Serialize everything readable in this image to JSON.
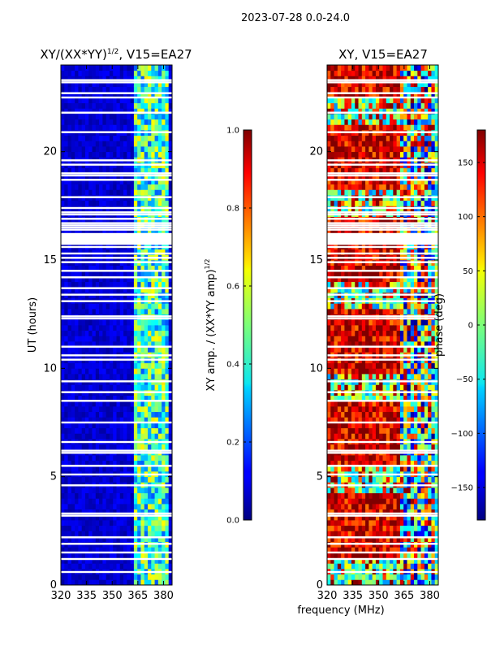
{
  "figure_title": "2023-07-28 0.0-24.0",
  "chart_data": [
    {
      "type": "heatmap",
      "title_prefix": "XY/(XX*YY)",
      "title_exp": "1/2",
      "title_suffix": ", V15=EA27",
      "xlabel": "",
      "ylabel": "UT (hours)",
      "xlim": [
        320,
        385
      ],
      "ylim": [
        0,
        24
      ],
      "xticks": [
        320,
        335,
        350,
        365,
        380
      ],
      "yticks": [
        0,
        5,
        10,
        15,
        20
      ],
      "value_range": [
        0,
        1
      ],
      "colorbar": {
        "label_prefix": "XY amp. / (XX*YY amp)",
        "label_exp": "1/2",
        "ticks": [
          0.0,
          0.2,
          0.4,
          0.6,
          0.8,
          1.0
        ],
        "tick_labels": [
          "0.0",
          "0.2",
          "0.4",
          "0.6",
          "0.8",
          "1.0"
        ],
        "range": [
          0,
          1
        ]
      },
      "colormap": "jet",
      "bands": [
        {
          "x_start": 320,
          "x_end": 362,
          "typical_value": 0.08
        },
        {
          "x_start": 362,
          "x_end": 383,
          "typical_value": 0.35
        },
        {
          "x_start": 383,
          "x_end": 385,
          "typical_value": 0.1
        }
      ],
      "flagged_hours": [
        0.6,
        1.2,
        1.5,
        1.9,
        2.2,
        3.2,
        3.3,
        4.6,
        5.1,
        5.5,
        6.1,
        6.2,
        6.6,
        7.5,
        8.5,
        8.9,
        9.4,
        10.4,
        10.6,
        11.0,
        12.3,
        12.4,
        13.1,
        13.4,
        13.7,
        14.2,
        14.5,
        14.9,
        15.1,
        15.3,
        15.6,
        16.2,
        16.4,
        16.5,
        16.6,
        16.7,
        16.9,
        17.1,
        17.2,
        17.4,
        17.9,
        18.7,
        18.9,
        19.0,
        19.4,
        19.6,
        20.9,
        21.8,
        22.5,
        22.7,
        23.2,
        23.3
      ],
      "flagged_spans": [
        [
          15.7,
          16.2
        ]
      ]
    },
    {
      "type": "heatmap",
      "title": "XY, V15=EA27",
      "xlabel": "frequency (MHz)",
      "ylabel": "",
      "xlim": [
        320,
        385
      ],
      "ylim": [
        0,
        24
      ],
      "xticks": [
        320,
        335,
        350,
        365,
        380
      ],
      "yticks": [
        0,
        5,
        10,
        15,
        20
      ],
      "value_range": [
        -180,
        180
      ],
      "colorbar": {
        "label": "phase (deg)",
        "ticks": [
          -150,
          -100,
          -50,
          0,
          50,
          100,
          150
        ],
        "tick_labels": [
          "−150",
          "−100",
          "−50",
          "0",
          "50",
          "100",
          "150"
        ],
        "range": [
          -180,
          180
        ]
      },
      "colormap": "jet",
      "bands": [
        {
          "x_start": 320,
          "x_end": 362,
          "typical_value": 150
        },
        {
          "x_start": 362,
          "x_end": 385,
          "typical_value": -20
        }
      ],
      "flagged_hours": [
        0.6,
        1.2,
        1.5,
        1.9,
        2.2,
        3.2,
        3.3,
        4.6,
        5.1,
        5.5,
        6.1,
        6.2,
        6.6,
        7.5,
        8.5,
        8.9,
        9.4,
        10.4,
        10.6,
        11.0,
        12.3,
        12.4,
        13.1,
        13.4,
        13.7,
        14.2,
        14.5,
        14.9,
        15.1,
        15.3,
        15.6,
        16.2,
        16.4,
        16.5,
        16.6,
        16.7,
        16.9,
        17.1,
        17.2,
        17.4,
        17.9,
        18.7,
        18.9,
        19.0,
        19.4,
        19.6,
        20.9,
        21.8,
        22.5,
        22.7,
        23.2,
        23.3
      ],
      "flagged_spans": [
        [
          15.7,
          16.2
        ]
      ]
    }
  ]
}
